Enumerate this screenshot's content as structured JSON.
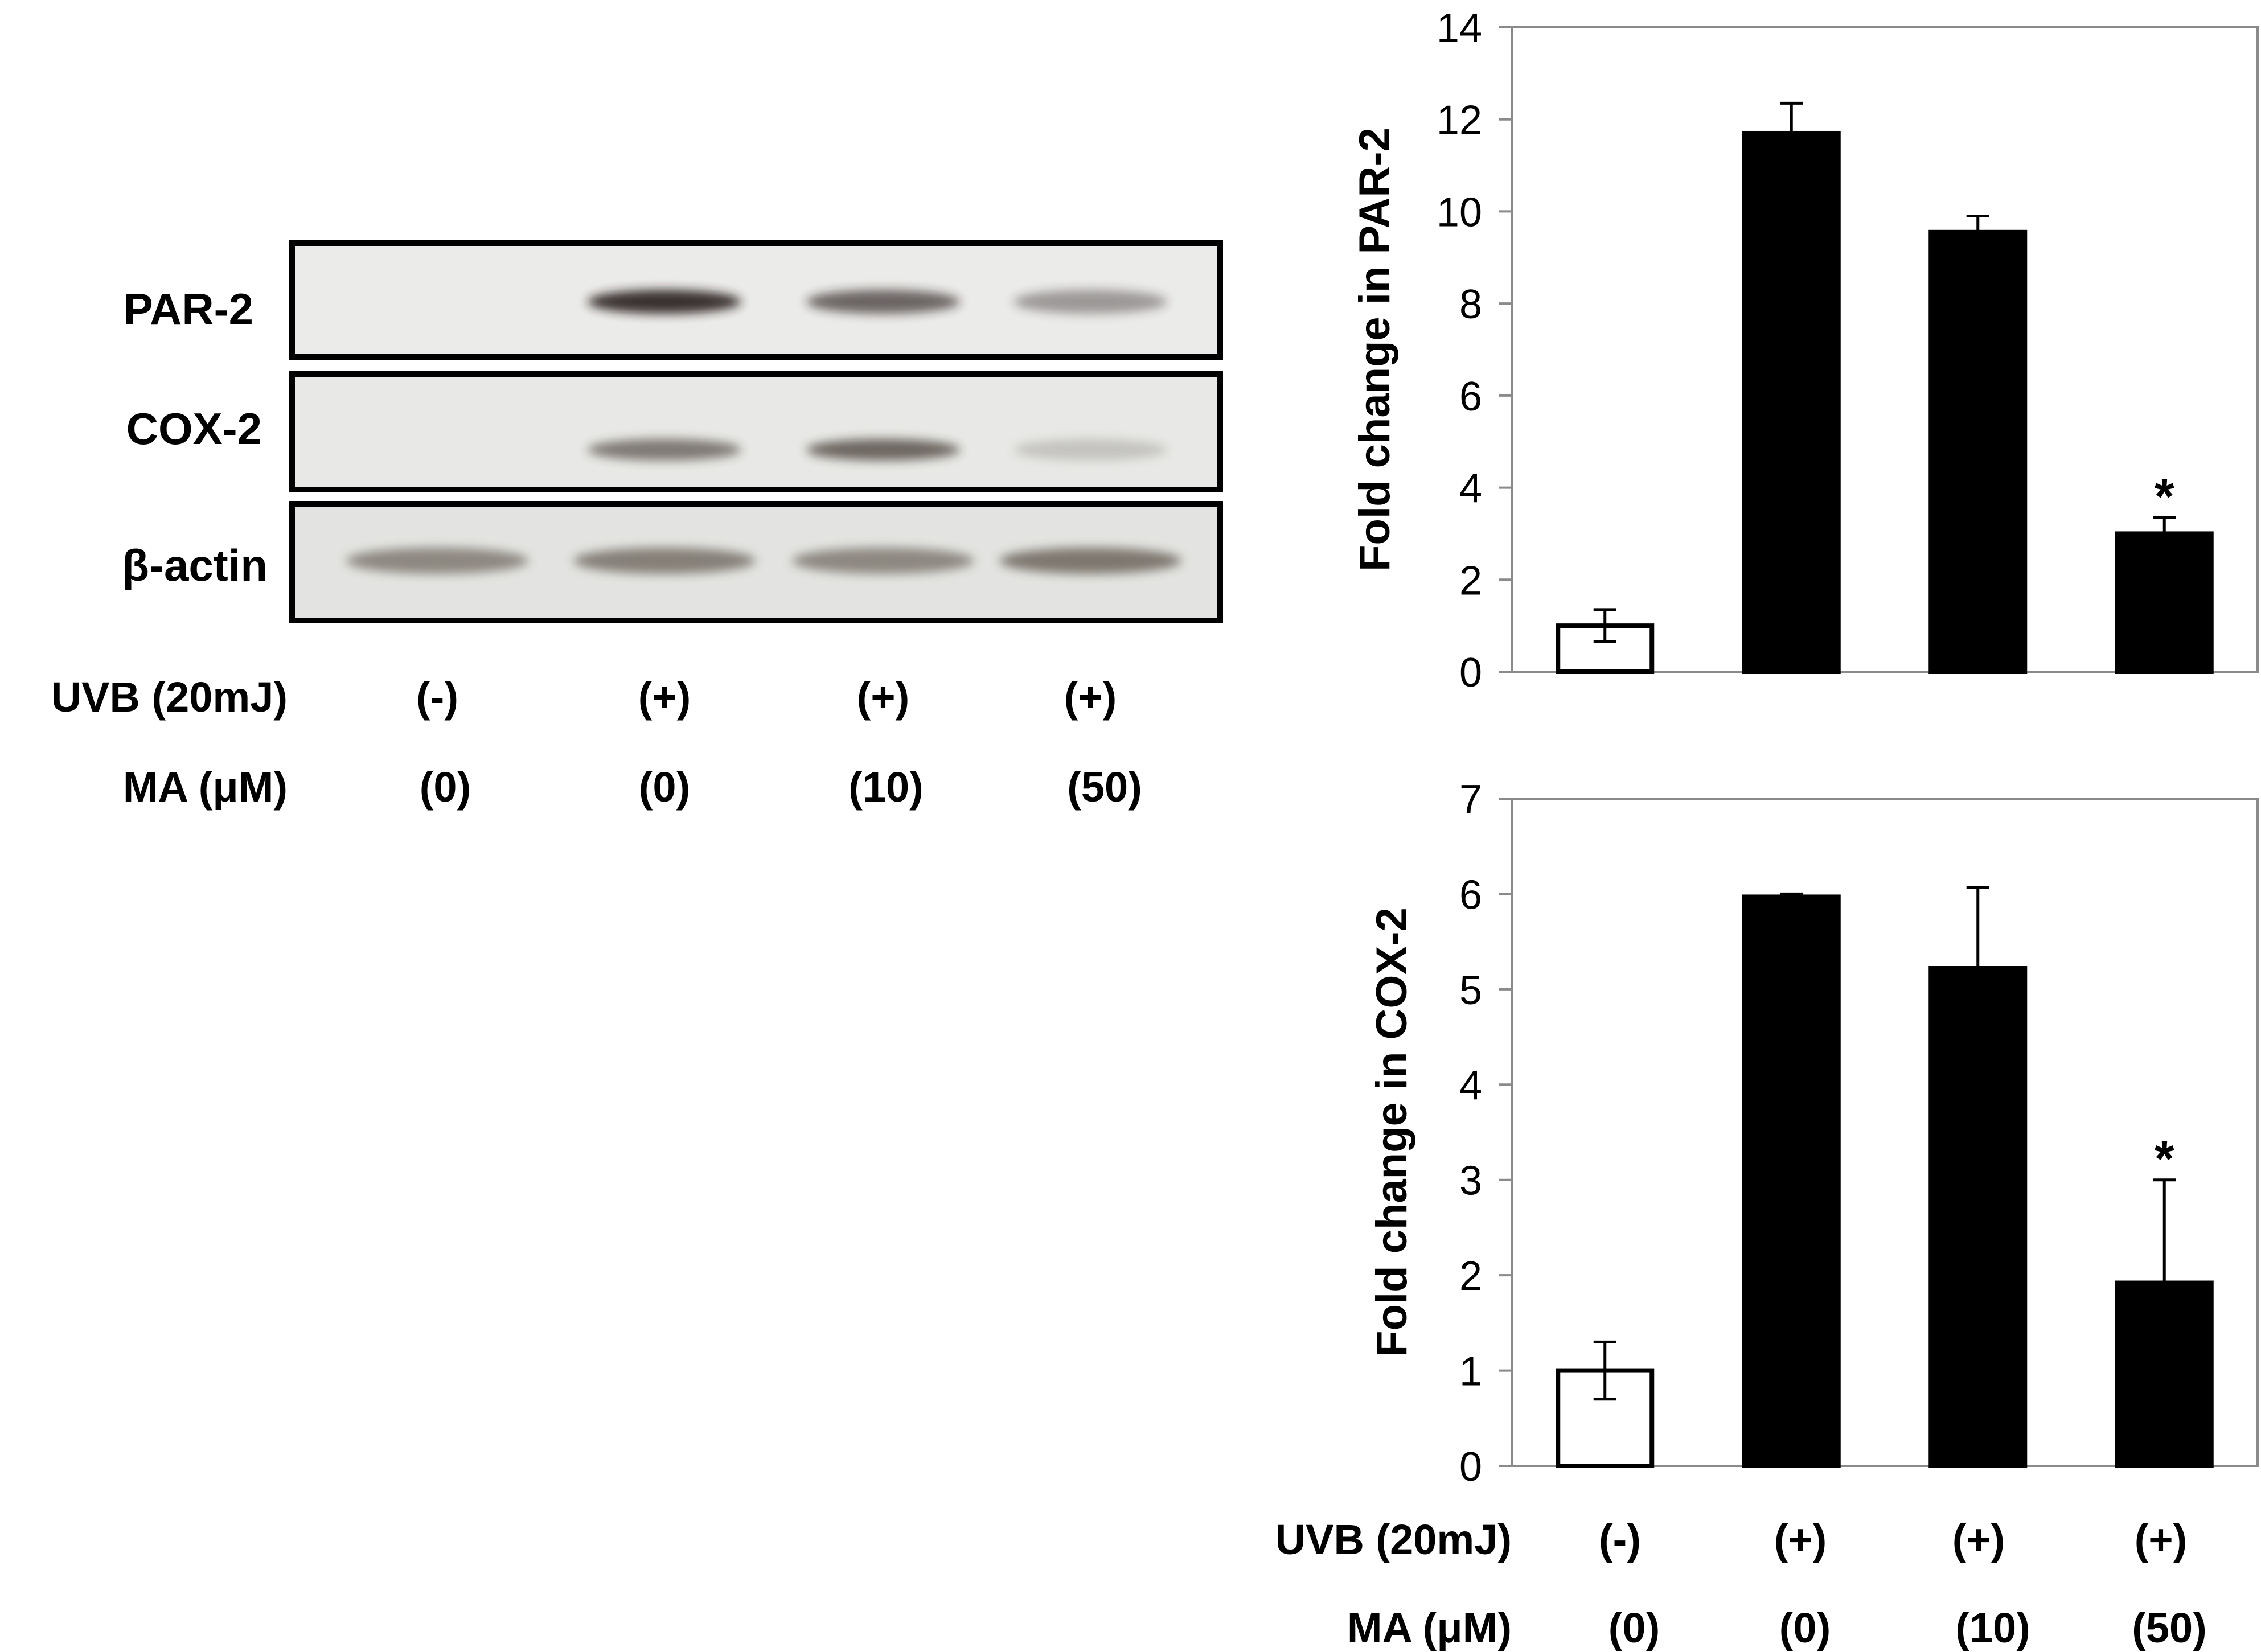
{
  "blot": {
    "bands": [
      "PAR-2",
      "COX-2",
      "β-actin"
    ],
    "treatment_rows": [
      {
        "label": "UVB (20mJ)",
        "values": [
          "(-)",
          "(+)",
          "(+)",
          "(+)"
        ]
      },
      {
        "label": "MA (μM)",
        "values": [
          "(0)",
          "(0)",
          "(10)",
          "(50)"
        ]
      }
    ],
    "band_intensity": {
      "PAR-2": [
        0.0,
        0.9,
        0.65,
        0.4
      ],
      "COX-2": [
        0.0,
        0.6,
        0.7,
        0.2
      ],
      "β-actin": [
        0.55,
        0.6,
        0.55,
        0.65
      ]
    }
  },
  "chart_data": [
    {
      "type": "bar",
      "categories": [
        "(-) (0)",
        "(+) (0)",
        "(+) (10)",
        "(+) (50)"
      ],
      "values": [
        1.0,
        11.7,
        9.55,
        3.0
      ],
      "errors": [
        0.35,
        0.65,
        0.35,
        0.35
      ],
      "fills": [
        "#ffffff",
        "#000000",
        "#000000",
        "#000000"
      ],
      "annotations": [
        "",
        "",
        "",
        "*"
      ],
      "title": "",
      "xlabel": "",
      "ylabel": "Fold change in PAR-2",
      "ylim": [
        0,
        14
      ],
      "yticks": [
        0,
        2,
        4,
        6,
        8,
        10,
        12,
        14
      ],
      "grid": false
    },
    {
      "type": "bar",
      "categories": [
        "(-) (0)",
        "(+) (0)",
        "(+) (10)",
        "(+) (50)"
      ],
      "values": [
        1.0,
        5.97,
        5.22,
        1.92
      ],
      "errors": [
        0.3,
        0.03,
        0.85,
        1.08
      ],
      "fills": [
        "#ffffff",
        "#000000",
        "#000000",
        "#000000"
      ],
      "annotations": [
        "",
        "",
        "",
        "*"
      ],
      "title": "",
      "xlabel": "",
      "ylabel": "Fold change in COX-2",
      "ylim": [
        0,
        7
      ],
      "yticks": [
        0,
        1,
        2,
        3,
        4,
        5,
        6,
        7
      ],
      "grid": false,
      "treatment_rows": [
        {
          "label": "UVB (20mJ)",
          "values": [
            "(-)",
            "(+)",
            "(+)",
            "(+)"
          ]
        },
        {
          "label": "MA (μM)",
          "values": [
            "(0)",
            "(0)",
            "(10)",
            "(50)"
          ]
        }
      ]
    }
  ]
}
